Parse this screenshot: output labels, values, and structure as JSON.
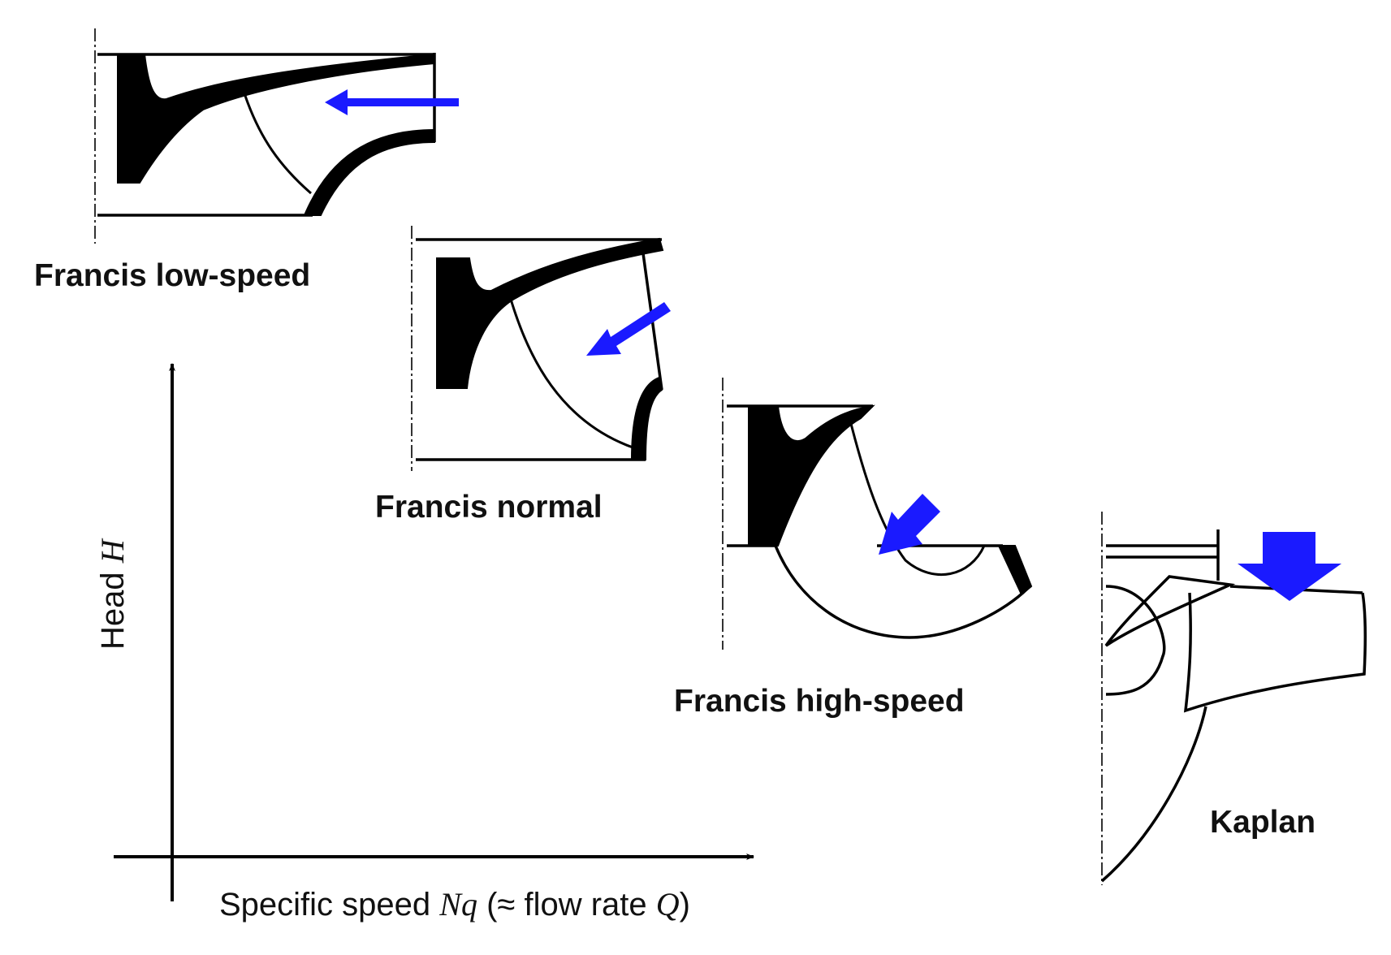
{
  "colors": {
    "flow_arrow": "#1a1aff",
    "ink": "#000000"
  },
  "turbines": [
    {
      "id": "francis-low-speed",
      "label": "Francis low-speed"
    },
    {
      "id": "francis-normal",
      "label": "Francis normal"
    },
    {
      "id": "francis-high-speed",
      "label": "Francis high-speed"
    },
    {
      "id": "kaplan",
      "label": "Kaplan"
    }
  ],
  "axes": {
    "y_label_text": "Head ",
    "y_label_symbol": "H",
    "x_label_part1": "Specific speed ",
    "x_label_symbol1": "Nq",
    "x_label_part2": " (≈ flow rate ",
    "x_label_symbol2": "Q",
    "x_label_part3": ")"
  }
}
